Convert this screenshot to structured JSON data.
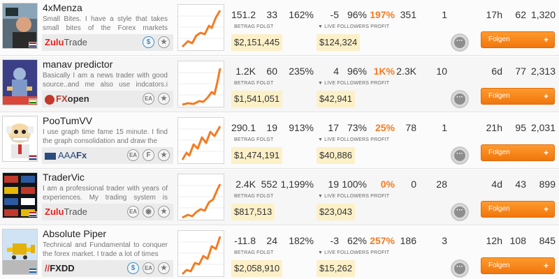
{
  "labels": {
    "betrag_folgt": "BETRAG FOLGT",
    "live_followers_profit": "LIVE FOLLOWERS PROFIT",
    "follow": "Folgen",
    "chat_glyph": "···",
    "plus_glyph": "+"
  },
  "colors": {
    "accent": "#f47b20",
    "money_bg": "#fcf0c8",
    "row_alt": "#f6f6f6"
  },
  "traders": [
    {
      "name": "4xMenza",
      "description": "Small Bites. I have a style that takes small bites of the Forex markets movements to",
      "broker": "ZuluTrade",
      "badges": [
        "dollar-icon",
        "star-icon"
      ],
      "stats": {
        "value": "151.2",
        "trades": "33",
        "roi": "162%",
        "pips": "-5",
        "winrate": "96%",
        "profit_pct": "197%",
        "weeks": "351",
        "rank": "1",
        "avg_time": "17h",
        "followers": "62",
        "amount_following_count": "1,320"
      },
      "betrag": "$2,151,445",
      "live_profit": "$124,324"
    },
    {
      "name": "manav predictor",
      "description": "Basically I am a news trader with good source..and me also use indcators.i have",
      "broker": "FXopen",
      "badges": [
        "ea-icon",
        "star-icon"
      ],
      "stats": {
        "value": "1.2K",
        "trades": "60",
        "roi": "235%",
        "pips": "4",
        "winrate": "96%",
        "profit_pct": "1K%",
        "weeks": "2.3K",
        "rank": "10",
        "avg_time": "6d",
        "followers": "77",
        "amount_following_count": "2,313"
      },
      "betrag": "$1,541,051",
      "live_profit": "$42,941"
    },
    {
      "name": "PooTumVV",
      "description": "I use graph time fame 15 minute. I find the graph consolidation and draw the",
      "broker": "AAAFx",
      "badges": [
        "ea-icon",
        "f-icon",
        "star-icon"
      ],
      "stats": {
        "value": "290.1",
        "trades": "19",
        "roi": "913%",
        "pips": "17",
        "winrate": "73%",
        "profit_pct": "25%",
        "weeks": "78",
        "rank": "1",
        "avg_time": "21h",
        "followers": "95",
        "amount_following_count": "2,031"
      },
      "betrag": "$1,474,191",
      "live_profit": "$40,886"
    },
    {
      "name": "TraderVic",
      "description": "I am a professional trader with years of experiences. My trading system is based",
      "broker": "ZuluTrade",
      "badges": [
        "ea-icon",
        "eye-icon",
        "star-icon"
      ],
      "stats": {
        "value": "2.4K",
        "trades": "552",
        "roi": "1,199%",
        "pips": "19",
        "winrate": "100%",
        "profit_pct": "0%",
        "weeks": "0",
        "rank": "28",
        "avg_time": "4d",
        "followers": "43",
        "amount_following_count": "899"
      },
      "betrag": "$817,513",
      "live_profit": "$23,043"
    },
    {
      "name": "Absolute Piper",
      "description": "Technical and Fundamental to conquer the forex market. I trade a lot of times",
      "broker": "FXDD",
      "badges": [
        "dollar-icon",
        "ea-icon",
        "star-icon"
      ],
      "stats": {
        "value": "-11.8",
        "trades": "24",
        "roi": "182%",
        "pips": "-3",
        "winrate": "62%",
        "profit_pct": "257%",
        "weeks": "186",
        "rank": "3",
        "avg_time": "12h",
        "followers": "108",
        "amount_following_count": "845"
      },
      "betrag": "$2,058,910",
      "live_profit": "$15,262"
    }
  ]
}
